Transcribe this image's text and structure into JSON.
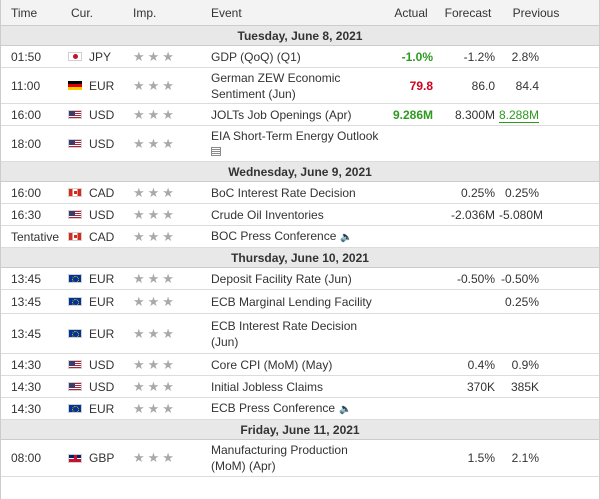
{
  "header": {
    "time": "Time",
    "currency": "Cur.",
    "importance": "Imp.",
    "event": "Event",
    "actual": "Actual",
    "forecast": "Forecast",
    "previous": "Previous"
  },
  "days": [
    {
      "label": "Tuesday, June 8, 2021",
      "events": [
        {
          "time": "01:50",
          "flag": "jp",
          "currency": "JPY",
          "stars": "★★★",
          "event": "GDP (QoQ) (Q1)",
          "actual": "-1.0%",
          "actual_color": "green",
          "forecast": "-1.2%",
          "previous": "2.8%",
          "previous_style": ""
        },
        {
          "time": "11:00",
          "flag": "de",
          "currency": "EUR",
          "stars": "★★★",
          "event": "German ZEW Economic Sentiment (Jun)",
          "actual": "79.8",
          "actual_color": "red",
          "forecast": "86.0",
          "previous": "84.4",
          "previous_style": ""
        },
        {
          "time": "16:00",
          "flag": "us",
          "currency": "USD",
          "stars": "★★★",
          "event": "JOLTs Job Openings (Apr)",
          "actual": "9.286M",
          "actual_color": "green",
          "forecast": "8.300M",
          "previous": "8.288M",
          "previous_style": "green-underline"
        },
        {
          "time": "18:00",
          "flag": "us",
          "currency": "USD",
          "stars": "★★★",
          "event": "EIA Short-Term Energy Outlook",
          "actual": "",
          "forecast": "",
          "previous": "",
          "icon": "document-icon"
        }
      ]
    },
    {
      "label": "Wednesday, June 9, 2021",
      "events": [
        {
          "time": "16:00",
          "flag": "ca",
          "currency": "CAD",
          "stars": "★★★",
          "event": "BoC Interest Rate Decision",
          "actual": "",
          "forecast": "0.25%",
          "previous": "0.25%"
        },
        {
          "time": "16:30",
          "flag": "us",
          "currency": "USD",
          "stars": "★★★",
          "event": "Crude Oil Inventories",
          "actual": "",
          "forecast": "-2.036M",
          "previous": "-5.080M"
        },
        {
          "time": "Tentative",
          "flag": "ca",
          "currency": "CAD",
          "stars": "★★★",
          "event": "BOC Press Conference",
          "actual": "",
          "forecast": "",
          "previous": "",
          "icon": "speaker-icon"
        }
      ]
    },
    {
      "label": "Thursday, June 10, 2021",
      "events": [
        {
          "time": "13:45",
          "flag": "eu",
          "currency": "EUR",
          "stars": "★★★",
          "event": "Deposit Facility Rate (Jun)",
          "actual": "",
          "forecast": "-0.50%",
          "previous": "-0.50%"
        },
        {
          "time": "13:45",
          "flag": "eu",
          "currency": "EUR",
          "stars": "★★★",
          "event": "ECB Marginal Lending Facility",
          "actual": "",
          "forecast": "",
          "previous": "0.25%"
        },
        {
          "time": "13:45",
          "flag": "eu",
          "currency": "EUR",
          "stars": "★★★",
          "event": "ECB Interest Rate Decision (Jun)",
          "actual": "",
          "forecast": "",
          "previous": ""
        },
        {
          "time": "14:30",
          "flag": "us",
          "currency": "USD",
          "stars": "★★★",
          "event": "Core CPI (MoM) (May)",
          "actual": "",
          "forecast": "0.4%",
          "previous": "0.9%"
        },
        {
          "time": "14:30",
          "flag": "us",
          "currency": "USD",
          "stars": "★★★",
          "event": "Initial Jobless Claims",
          "actual": "",
          "forecast": "370K",
          "previous": "385K"
        },
        {
          "time": "14:30",
          "flag": "eu",
          "currency": "EUR",
          "stars": "★★★",
          "event": "ECB Press Conference",
          "actual": "",
          "forecast": "",
          "previous": "",
          "icon": "speaker-icon"
        }
      ]
    },
    {
      "label": "Friday, June 11, 2021",
      "events": [
        {
          "time": "08:00",
          "flag": "gb",
          "currency": "GBP",
          "stars": "★★★",
          "event": "Manufacturing Production (MoM) (Apr)",
          "actual": "",
          "forecast": "1.5%",
          "previous": "2.1%"
        }
      ]
    }
  ]
}
